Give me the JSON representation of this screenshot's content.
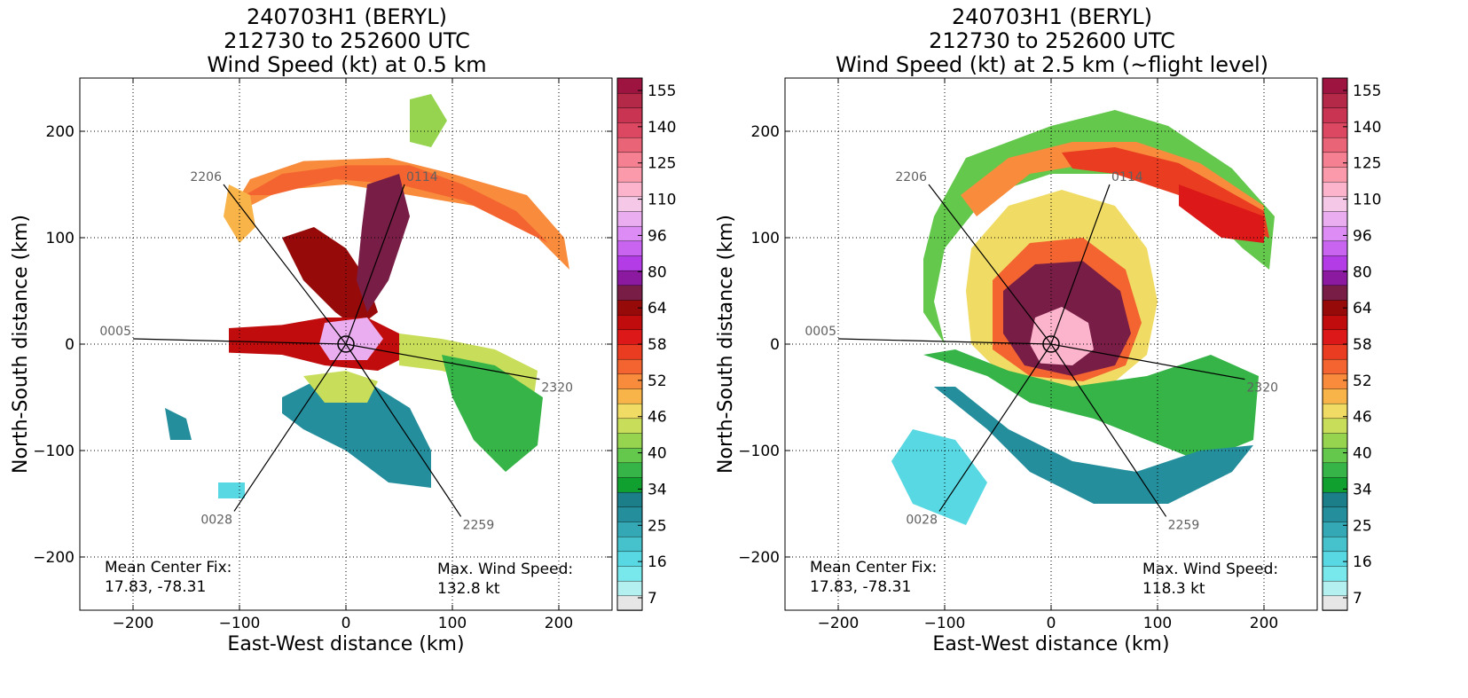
{
  "colors": {
    "colorbar": [
      "#e6e6e6",
      "#b4f0f0",
      "#78e8ec",
      "#58d8e2",
      "#46c2cc",
      "#34a8b4",
      "#248e9c",
      "#1c7e88",
      "#10a030",
      "#36b448",
      "#64c84c",
      "#96d450",
      "#c8de5a",
      "#f0dc64",
      "#f8b448",
      "#f88c3c",
      "#f46430",
      "#ea3c20",
      "#dc1818",
      "#c00c0c",
      "#960a0a",
      "#781e46",
      "#8c1aa0",
      "#b43ce6",
      "#c864f0",
      "#dc8cf4",
      "#eaaef0",
      "#f4c8e6",
      "#fcb4cc",
      "#fa9aaa",
      "#f48092",
      "#ea6478",
      "#dc4862",
      "#c83452",
      "#b42848",
      "#9e1440"
    ],
    "centerline": "#000000",
    "contour": "#7a7a7a"
  },
  "chart_data": [
    {
      "type": "heatmap",
      "title_lines": [
        "240703H1 (BERYL)",
        "212730 to 252600 UTC",
        "Wind Speed (kt) at 0.5 km"
      ],
      "xlabel": "East-West distance (km)",
      "ylabel": "North-South distance (km)",
      "xlim": [
        -250,
        250
      ],
      "ylim": [
        -250,
        250
      ],
      "xticks": [
        -200,
        -100,
        0,
        100,
        200
      ],
      "yticks": [
        200,
        100,
        0,
        -100,
        -200
      ],
      "grid": true,
      "colorbar": {
        "ticks": [
          "155",
          "140",
          "125",
          "110",
          "96",
          "80",
          "64",
          "58",
          "52",
          "46",
          "40",
          "34",
          "25",
          "16",
          "7"
        ]
      },
      "flight_legs": [
        {
          "label": "2206",
          "x": -115,
          "y": 150
        },
        {
          "label": "0114",
          "x": 55,
          "y": 150
        },
        {
          "label": "0005",
          "x": -200,
          "y": 5
        },
        {
          "label": "2320",
          "x": 182,
          "y": -33
        },
        {
          "label": "0028",
          "x": -105,
          "y": -157
        },
        {
          "label": "2259",
          "x": 108,
          "y": -162
        }
      ],
      "center_fix": {
        "label": "Mean Center Fix:",
        "value": "17.83, -78.31"
      },
      "max_wind": {
        "label": "Max. Wind Speed:",
        "value": "132.8 kt"
      }
    },
    {
      "type": "heatmap",
      "title_lines": [
        "240703H1 (BERYL)",
        "212730 to 252600 UTC",
        "Wind Speed (kt) at 2.5 km (~flight level)"
      ],
      "xlabel": "East-West distance (km)",
      "ylabel": "North-South distance (km)",
      "xlim": [
        -250,
        250
      ],
      "ylim": [
        -250,
        250
      ],
      "xticks": [
        -200,
        -100,
        0,
        100,
        200
      ],
      "yticks": [
        200,
        100,
        0,
        -100,
        -200
      ],
      "grid": true,
      "colorbar": {
        "ticks": [
          "155",
          "140",
          "125",
          "110",
          "96",
          "80",
          "64",
          "58",
          "52",
          "46",
          "40",
          "34",
          "25",
          "16",
          "7"
        ]
      },
      "flight_legs": [
        {
          "label": "2206",
          "x": -115,
          "y": 150
        },
        {
          "label": "0114",
          "x": 55,
          "y": 150
        },
        {
          "label": "0005",
          "x": -200,
          "y": 5
        },
        {
          "label": "2320",
          "x": 182,
          "y": -33
        },
        {
          "label": "0028",
          "x": -105,
          "y": -157
        },
        {
          "label": "2259",
          "x": 108,
          "y": -162
        }
      ],
      "center_fix": {
        "label": "Mean Center Fix:",
        "value": "17.83, -78.31"
      },
      "max_wind": {
        "label": "Max. Wind Speed:",
        "value": "118.3 kt"
      }
    }
  ]
}
